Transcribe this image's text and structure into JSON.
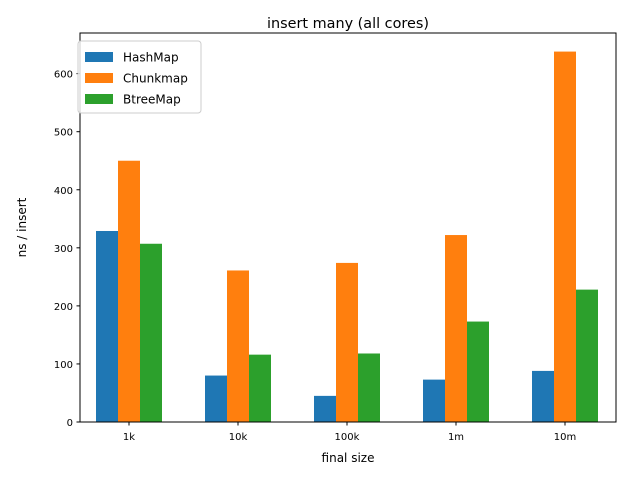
{
  "chart_data": {
    "type": "bar",
    "title": "insert many (all cores)",
    "xlabel": "final size",
    "ylabel": "ns / insert",
    "categories": [
      "1k",
      "10k",
      "100k",
      "1m",
      "10m"
    ],
    "ylim": [
      0,
      670
    ],
    "yticks": [
      0,
      100,
      200,
      300,
      400,
      500,
      600
    ],
    "grid": false,
    "legend_position": "top-left",
    "series": [
      {
        "name": "HashMap",
        "color": "#1f77b4",
        "values": [
          329,
          80,
          45,
          73,
          88
        ]
      },
      {
        "name": "Chunkmap",
        "color": "#ff7f0e",
        "values": [
          450,
          261,
          274,
          322,
          638
        ]
      },
      {
        "name": "BtreeMap",
        "color": "#2ca02c",
        "values": [
          307,
          116,
          118,
          173,
          228
        ]
      }
    ]
  }
}
